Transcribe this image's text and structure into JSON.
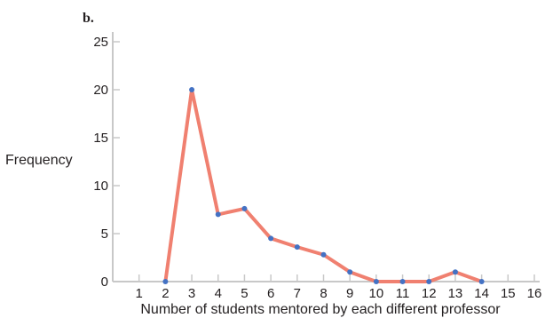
{
  "panel_label": "b.",
  "chart_data": {
    "type": "line",
    "title": "",
    "xlabel": "Number of students mentored by each different professor",
    "ylabel": "Frequency",
    "xlim": [
      0,
      16
    ],
    "ylim": [
      0,
      25
    ],
    "x_ticks": [
      1,
      2,
      3,
      4,
      5,
      6,
      7,
      8,
      9,
      10,
      11,
      12,
      13,
      14,
      15,
      16
    ],
    "y_ticks": [
      0,
      5,
      10,
      15,
      20,
      25
    ],
    "grid": false,
    "legend": "none",
    "series": [
      {
        "x": [
          2,
          3,
          4,
          5,
          6,
          7,
          8,
          9,
          10,
          11,
          12,
          13,
          14
        ],
        "y": [
          0,
          20,
          7,
          7.6,
          4.5,
          3.6,
          2.8,
          1,
          0,
          0,
          0,
          1,
          0
        ]
      }
    ],
    "colors": {
      "line": "#f08070",
      "marker": "#4472c4",
      "axis": "#c8c8c8",
      "text": "#231f20"
    }
  }
}
